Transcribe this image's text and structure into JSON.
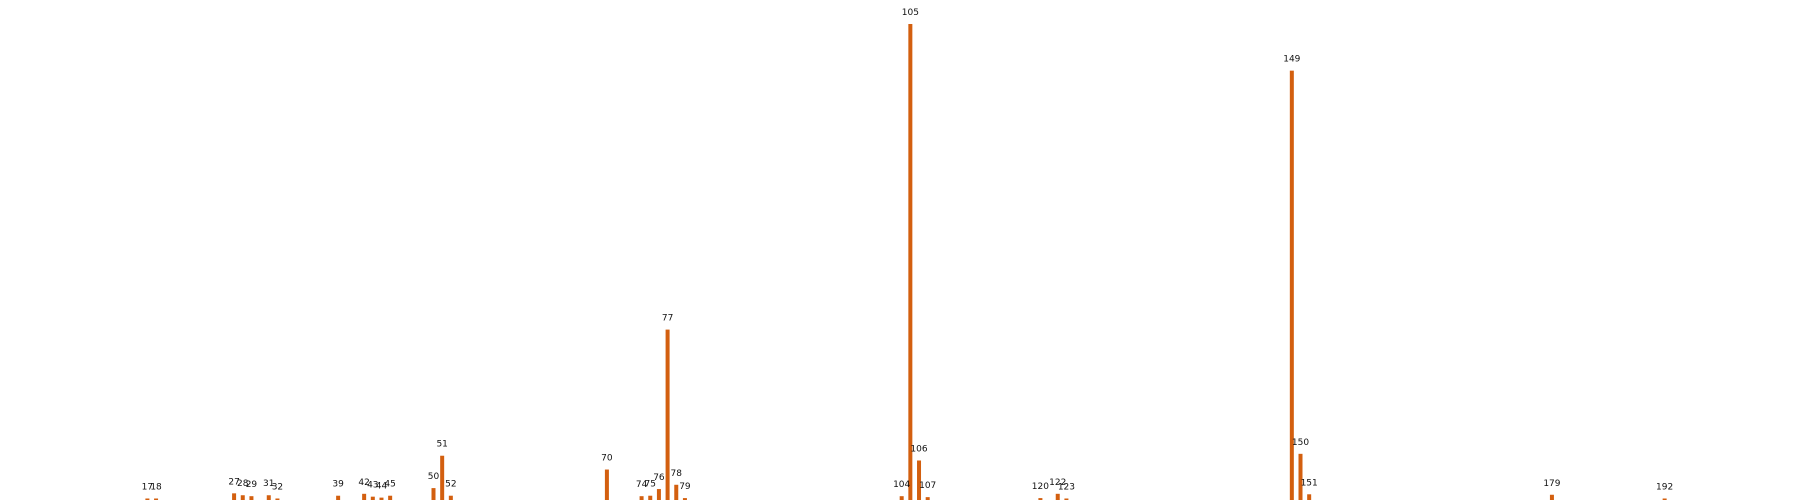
{
  "chart_data": {
    "type": "bar",
    "title": "",
    "xlabel": "",
    "ylabel": "",
    "grid": false,
    "bar_color": "#d35f0f",
    "xlim": [
      0,
      205
    ],
    "ylim": [
      0,
      100
    ],
    "points": [
      {
        "x": 17,
        "y": 0.3,
        "label": "17"
      },
      {
        "x": 18,
        "y": 0.3,
        "label": "18"
      },
      {
        "x": 27,
        "y": 1.4,
        "label": "27"
      },
      {
        "x": 28,
        "y": 1.0,
        "label": "28"
      },
      {
        "x": 29,
        "y": 0.8,
        "label": "29"
      },
      {
        "x": 31,
        "y": 1.0,
        "label": "31"
      },
      {
        "x": 32,
        "y": 0.2,
        "label": "32"
      },
      {
        "x": 39,
        "y": 0.9,
        "label": "39"
      },
      {
        "x": 42,
        "y": 1.3,
        "label": "42"
      },
      {
        "x": 43,
        "y": 0.7,
        "label": "43"
      },
      {
        "x": 44,
        "y": 0.5,
        "label": "44"
      },
      {
        "x": 45,
        "y": 0.9,
        "label": "45"
      },
      {
        "x": 50,
        "y": 2.5,
        "label": "50"
      },
      {
        "x": 51,
        "y": 9.3,
        "label": "51"
      },
      {
        "x": 52,
        "y": 0.9,
        "label": "52"
      },
      {
        "x": 70,
        "y": 6.4,
        "label": "70"
      },
      {
        "x": 74,
        "y": 0.8,
        "label": "74"
      },
      {
        "x": 75,
        "y": 0.9,
        "label": "75"
      },
      {
        "x": 76,
        "y": 2.3,
        "label": "76"
      },
      {
        "x": 77,
        "y": 35.8,
        "label": "77"
      },
      {
        "x": 78,
        "y": 3.2,
        "label": "78"
      },
      {
        "x": 79,
        "y": 0.4,
        "label": "79"
      },
      {
        "x": 104,
        "y": 0.8,
        "label": "104"
      },
      {
        "x": 105,
        "y": 100.0,
        "label": "105"
      },
      {
        "x": 106,
        "y": 8.3,
        "label": "106"
      },
      {
        "x": 107,
        "y": 0.6,
        "label": "107"
      },
      {
        "x": 120,
        "y": 0.4,
        "label": "120"
      },
      {
        "x": 122,
        "y": 1.3,
        "label": "122"
      },
      {
        "x": 123,
        "y": 0.2,
        "label": "123"
      },
      {
        "x": 149,
        "y": 90.2,
        "label": "149"
      },
      {
        "x": 150,
        "y": 9.7,
        "label": "150"
      },
      {
        "x": 151,
        "y": 1.2,
        "label": "151"
      },
      {
        "x": 179,
        "y": 1.1,
        "label": "179"
      },
      {
        "x": 192,
        "y": 0.3,
        "label": "192"
      }
    ]
  }
}
